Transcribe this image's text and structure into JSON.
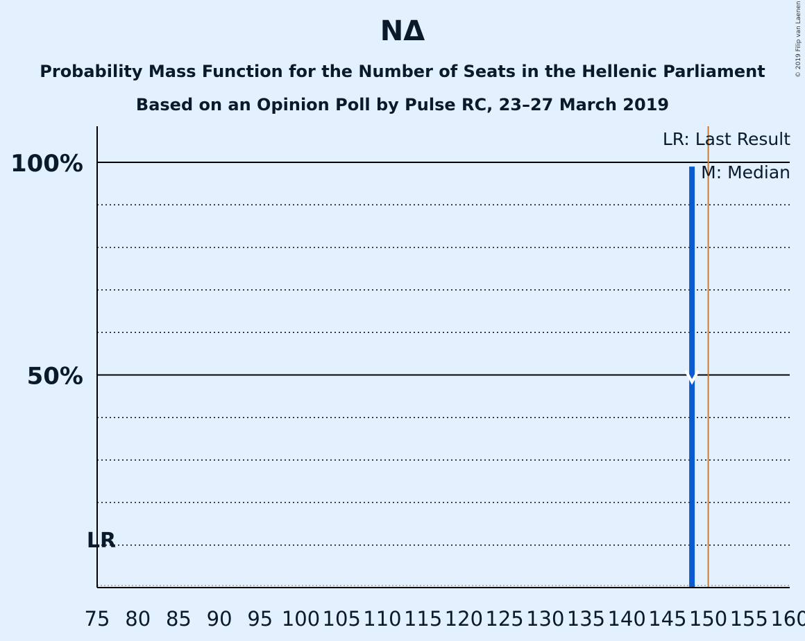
{
  "title": "NΔ",
  "subtitle": "Probability Mass Function for the Number of Seats in the Hellenic Parliament",
  "subtitle2": "Based on an Opinion Poll by Pulse RC, 23–27 March 2019",
  "copyright": "© 2019 Filip van Laenen",
  "colors": {
    "background": "#e3f0fe",
    "bar": "#0a5bd0",
    "last_result_line": "#c87c34",
    "axis": "#000000"
  },
  "chart_data": {
    "type": "bar",
    "xlim": [
      75,
      160
    ],
    "ylim": [
      0,
      1.1
    ],
    "x_ticks": [
      75,
      80,
      85,
      90,
      95,
      100,
      105,
      110,
      115,
      120,
      125,
      130,
      135,
      140,
      145,
      150,
      155,
      160
    ],
    "y_major_ticks": [
      {
        "value": 0.5,
        "label": "50%"
      },
      {
        "value": 1.0,
        "label": "100%"
      }
    ],
    "y_minor_gridlines": [
      0.1,
      0.2,
      0.3,
      0.4,
      0.6,
      0.7,
      0.8,
      0.9
    ],
    "bars": [
      {
        "x": 148,
        "value": 0.99
      }
    ],
    "median": {
      "x": 148,
      "y": 0.5
    },
    "last_result": {
      "x": 150
    },
    "lr_label": "LR",
    "legend": [
      "LR: Last Result",
      "M: Median"
    ],
    "grid": true,
    "legend_position": "top-right"
  }
}
